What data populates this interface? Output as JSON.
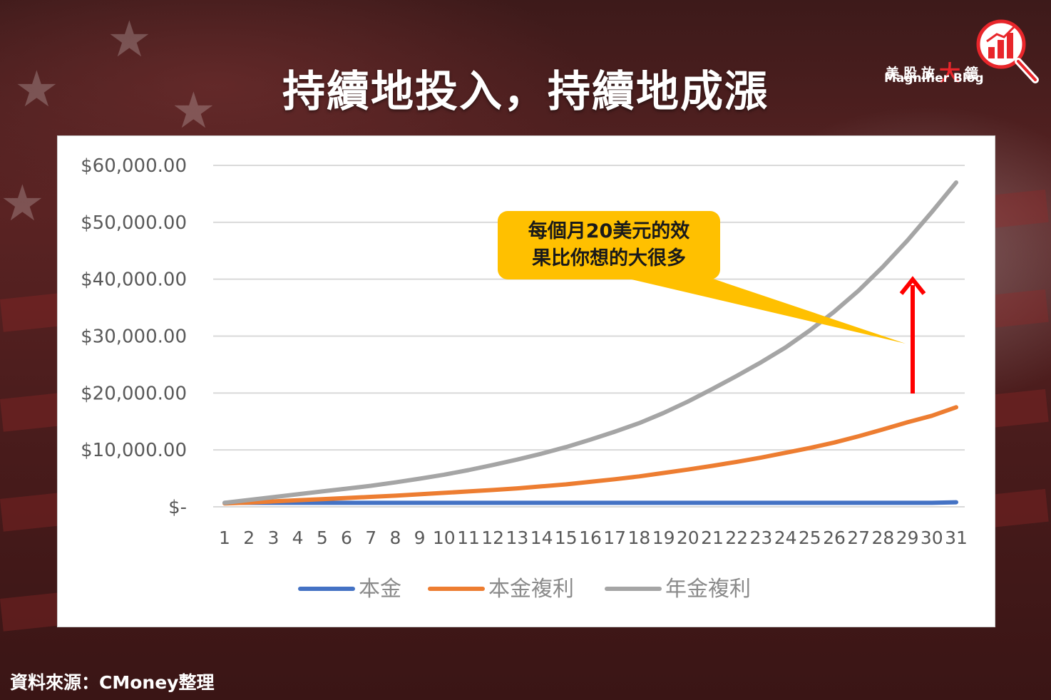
{
  "title": "持續地投入，持續地成漲",
  "logo": {
    "cn_prefix": "美股放",
    "cn_big": "大",
    "cn_suffix": "鏡",
    "en": "Magnifier Blog",
    "icon": "magnifier-bar-chart-icon",
    "accent_color": "#e8262b"
  },
  "callout": {
    "line1": "每個月20美元的效",
    "line2": "果比你想的大很多",
    "color": "#ffc000"
  },
  "source": "資料來源：CMoney整理",
  "chart_data": {
    "type": "line",
    "x": [
      1,
      2,
      3,
      4,
      5,
      6,
      7,
      8,
      9,
      10,
      11,
      12,
      13,
      14,
      15,
      16,
      17,
      18,
      19,
      20,
      21,
      22,
      23,
      24,
      25,
      26,
      27,
      28,
      29,
      30,
      31
    ],
    "x_tick_labels": [
      "1",
      "2",
      "3",
      "4",
      "5",
      "6",
      "7",
      "8",
      "9",
      "10",
      "11",
      "12",
      "13",
      "14",
      "15",
      "16",
      "17",
      "18",
      "19",
      "20",
      "21",
      "22",
      "23",
      "24",
      "25",
      "26",
      "27",
      "28",
      "29",
      "30",
      "31"
    ],
    "ylim": [
      0,
      60000
    ],
    "y_tick_labels": [
      "$-",
      "$10,000.00",
      "$20,000.00",
      "$30,000.00",
      "$40,000.00",
      "$50,000.00",
      "$60,000.00"
    ],
    "y_ticks": [
      0,
      10000,
      20000,
      30000,
      40000,
      50000,
      60000
    ],
    "grid": true,
    "legend_position": "bottom",
    "series": [
      {
        "name": "本金",
        "color": "#4472c4",
        "values": [
          700,
          700,
          700,
          700,
          700,
          700,
          700,
          700,
          700,
          700,
          700,
          700,
          700,
          700,
          700,
          700,
          700,
          700,
          700,
          700,
          700,
          700,
          700,
          700,
          700,
          700,
          700,
          700,
          700,
          700,
          800
        ]
      },
      {
        "name": "本金複利",
        "color": "#ed7d31",
        "values": [
          600,
          750,
          950,
          1150,
          1350,
          1550,
          1750,
          1950,
          2200,
          2450,
          2700,
          2950,
          3250,
          3600,
          3950,
          4400,
          4850,
          5350,
          5950,
          6550,
          7200,
          7900,
          8650,
          9500,
          10350,
          11300,
          12400,
          13600,
          14850,
          16000,
          17500
        ]
      },
      {
        "name": "年金複利",
        "color": "#a5a5a5",
        "values": [
          700,
          1200,
          1700,
          2200,
          2700,
          3200,
          3700,
          4300,
          4950,
          5650,
          6450,
          7350,
          8300,
          9350,
          10500,
          11800,
          13200,
          14700,
          16500,
          18500,
          20700,
          23000,
          25400,
          28000,
          31000,
          34300,
          38000,
          42200,
          46800,
          51800,
          57000
        ]
      }
    ]
  }
}
